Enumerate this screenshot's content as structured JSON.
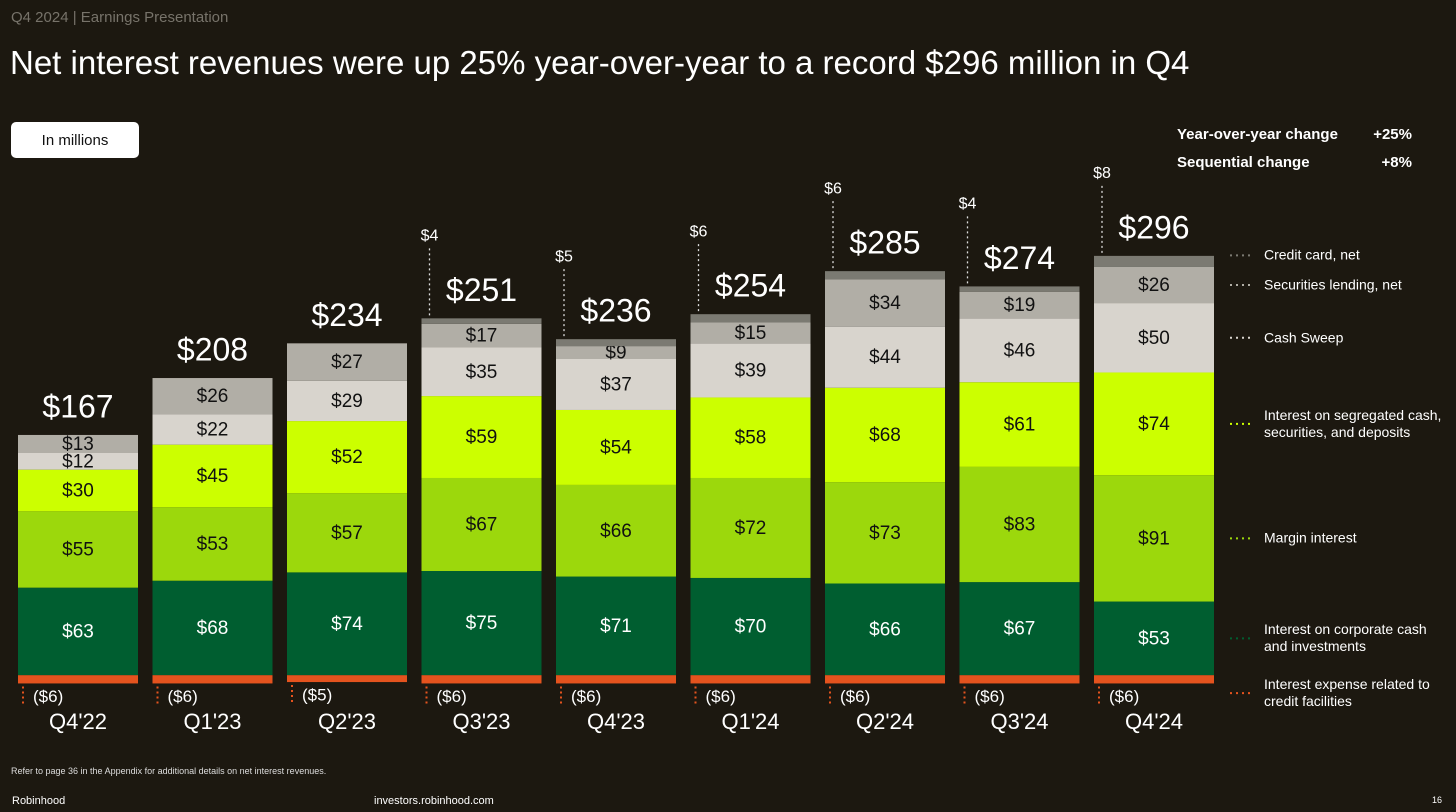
{
  "header": "Q4 2024 | Earnings Presentation",
  "badge": "In millions",
  "stats": [
    {
      "label": "Year-over-year change",
      "value": "+25%"
    },
    {
      "label": "Sequential change",
      "value": "+8%"
    }
  ],
  "footnote": "Refer to page 36 in the Appendix for additional details on net interest revenues.",
  "footer": {
    "brand": "Robinhood",
    "url": "investors.robinhood.com",
    "page": "16"
  },
  "chart_data": {
    "type": "stacked_bar",
    "title": "Net interest revenues were up 25% year-over-year to a record $296 million in Q4",
    "categories": [
      "Q4'22",
      "Q1'23",
      "Q2'23",
      "Q3'23",
      "Q4'23",
      "Q1'24",
      "Q2'24",
      "Q3'24",
      "Q4'24"
    ],
    "ylim": [
      -10,
      330
    ],
    "totals": [
      167,
      208,
      234,
      251,
      236,
      254,
      285,
      274,
      296
    ],
    "total_labels": [
      "$167",
      "$208",
      "$234",
      "$251",
      "$236",
      "$254",
      "$285",
      "$274",
      "$296"
    ],
    "series": [
      {
        "name": "Interest expense related to credit facilities",
        "color": "#e4531e",
        "values": [
          -6,
          -6,
          -5,
          -6,
          -6,
          -6,
          -6,
          -6,
          -6
        ],
        "value_labels": [
          "($6)",
          "($6)",
          "($5)",
          "($6)",
          "($6)",
          "($6)",
          "($6)",
          "($6)",
          "($6)"
        ]
      },
      {
        "name": "Interest on corporate cash and investments",
        "color": "#005e30",
        "values": [
          63,
          68,
          74,
          75,
          71,
          70,
          66,
          67,
          53
        ],
        "value_labels": [
          "$63",
          "$68",
          "$74",
          "$75",
          "$71",
          "$70",
          "$66",
          "$67",
          "$53"
        ]
      },
      {
        "name": "Margin interest",
        "color": "#9cd80c",
        "values": [
          55,
          53,
          57,
          67,
          66,
          72,
          73,
          83,
          91
        ],
        "value_labels": [
          "$55",
          "$53",
          "$57",
          "$67",
          "$66",
          "$72",
          "$73",
          "$83",
          "$91"
        ]
      },
      {
        "name": "Interest on segregated cash, securities, and deposits",
        "color": "#ccff00",
        "values": [
          30,
          45,
          52,
          59,
          54,
          58,
          68,
          61,
          74
        ],
        "value_labels": [
          "$30",
          "$45",
          "$52",
          "$59",
          "$54",
          "$58",
          "$68",
          "$61",
          "$74"
        ]
      },
      {
        "name": "Cash Sweep",
        "color": "#d8d4cd",
        "values": [
          12,
          22,
          29,
          35,
          37,
          39,
          44,
          46,
          50
        ],
        "value_labels": [
          "$12",
          "$22",
          "$29",
          "$35",
          "$37",
          "$39",
          "$44",
          "$46",
          "$50"
        ]
      },
      {
        "name": "Securities lending, net",
        "color": "#b1aea6",
        "values": [
          13,
          26,
          27,
          17,
          9,
          15,
          34,
          19,
          26
        ],
        "value_labels": [
          "$13",
          "$26",
          "$27",
          "$17",
          "$9",
          "$15",
          "$34",
          "$19",
          "$26"
        ]
      },
      {
        "name": "Credit card, net",
        "color": "#7b7a72",
        "values": [
          null,
          null,
          null,
          4,
          5,
          6,
          6,
          4,
          8
        ],
        "value_labels": [
          null,
          null,
          null,
          "$4",
          "$5",
          "$6",
          "$6",
          "$4",
          "$8"
        ]
      }
    ]
  }
}
